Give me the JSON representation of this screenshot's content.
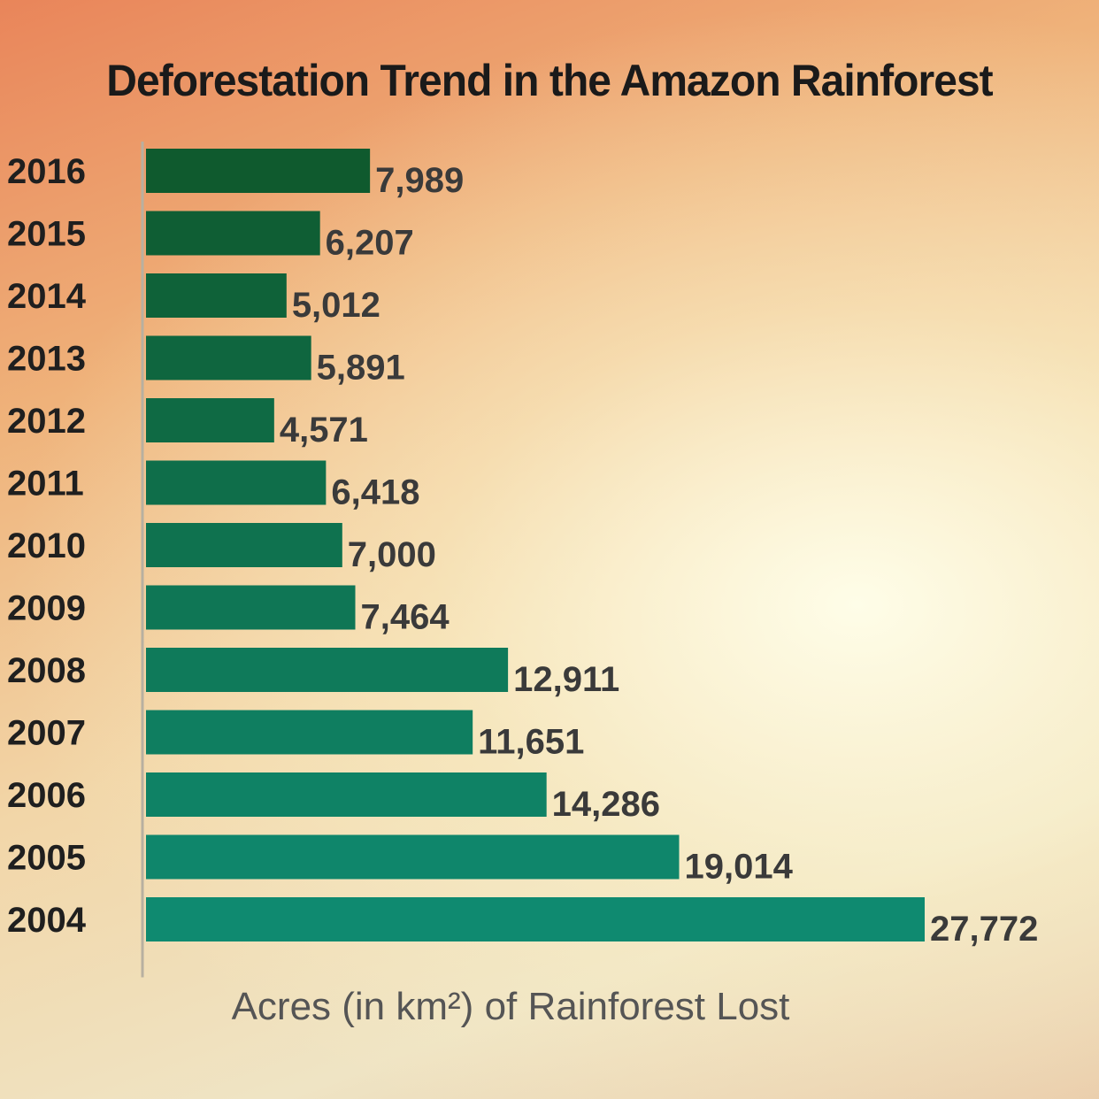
{
  "chart_data": {
    "type": "bar",
    "orientation": "horizontal",
    "title": "Deforestation Trend in the Amazon Rainforest",
    "xlabel": "Acres (in km²) of Rainforest Lost",
    "ylabel": "",
    "categories": [
      "2016",
      "2015",
      "2014",
      "2013",
      "2012",
      "2011",
      "2010",
      "2009",
      "2008",
      "2007",
      "2006",
      "2005",
      "2004"
    ],
    "values": [
      7989,
      6207,
      5012,
      5891,
      4571,
      6418,
      7000,
      7464,
      12911,
      11651,
      14286,
      19014,
      27772
    ],
    "value_labels": [
      "7,989",
      "6,207",
      "5,012",
      "5,891",
      "4,571",
      "6,418",
      "7,000",
      "7,464",
      "12,911",
      "11,651",
      "14,286",
      "19,014",
      "27,772"
    ],
    "xlim": [
      0,
      28000
    ],
    "grid": false,
    "legend": "none",
    "colors": {
      "bar_dark": "#0f5a2e",
      "bar_light": "#0f8a70",
      "axis_line": "#b8b0a0"
    }
  }
}
